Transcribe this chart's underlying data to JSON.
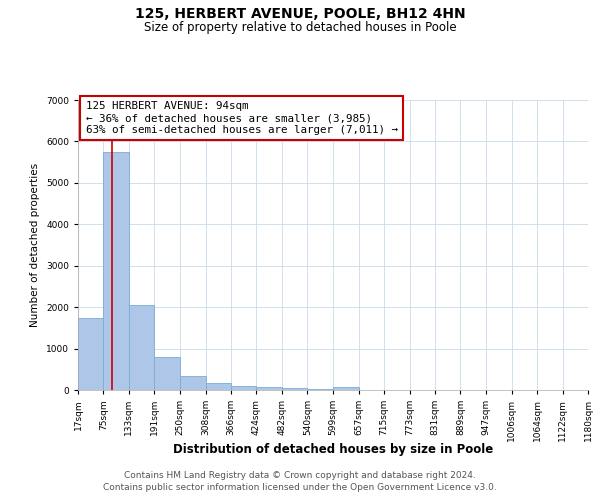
{
  "title": "125, HERBERT AVENUE, POOLE, BH12 4HN",
  "subtitle": "Size of property relative to detached houses in Poole",
  "xlabel": "Distribution of detached houses by size in Poole",
  "ylabel": "Number of detached properties",
  "bar_edges": [
    17,
    75,
    133,
    191,
    250,
    308,
    366,
    424,
    482,
    540,
    599,
    657,
    715,
    773,
    831,
    889,
    947,
    1006,
    1064,
    1122,
    1180
  ],
  "bar_heights": [
    1750,
    5750,
    2050,
    800,
    330,
    180,
    100,
    65,
    40,
    25,
    70,
    0,
    0,
    0,
    0,
    0,
    0,
    0,
    0,
    0
  ],
  "bar_color": "#aec6e8",
  "bar_edgecolor": "#7aadd4",
  "red_line_x": 94,
  "red_line_color": "#cc0000",
  "ylim": [
    0,
    7000
  ],
  "yticks": [
    0,
    1000,
    2000,
    3000,
    4000,
    5000,
    6000,
    7000
  ],
  "tick_labels": [
    "17sqm",
    "75sqm",
    "133sqm",
    "191sqm",
    "250sqm",
    "308sqm",
    "366sqm",
    "424sqm",
    "482sqm",
    "540sqm",
    "599sqm",
    "657sqm",
    "715sqm",
    "773sqm",
    "831sqm",
    "889sqm",
    "947sqm",
    "1006sqm",
    "1064sqm",
    "1122sqm",
    "1180sqm"
  ],
  "annotation_title": "125 HERBERT AVENUE: 94sqm",
  "annotation_line1": "← 36% of detached houses are smaller (3,985)",
  "annotation_line2": "63% of semi-detached houses are larger (7,011) →",
  "annotation_box_color": "#ffffff",
  "annotation_box_edgecolor": "#cc0000",
  "footer_line1": "Contains HM Land Registry data © Crown copyright and database right 2024.",
  "footer_line2": "Contains public sector information licensed under the Open Government Licence v3.0.",
  "bg_color": "#ffffff",
  "grid_color": "#c8daea",
  "title_fontsize": 10,
  "subtitle_fontsize": 8.5,
  "xlabel_fontsize": 8.5,
  "ylabel_fontsize": 7.5,
  "tick_fontsize": 6.5,
  "annotation_fontsize": 7.8,
  "footer_fontsize": 6.5
}
